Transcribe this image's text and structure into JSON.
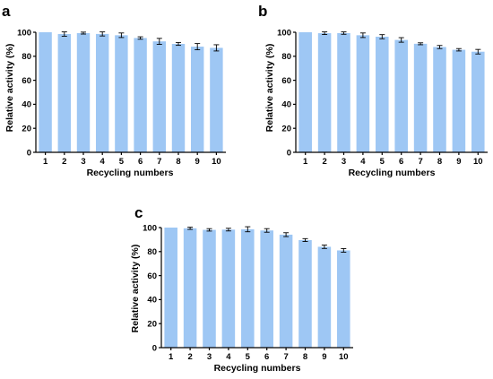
{
  "style": {
    "bar_color": "#9ec7f4",
    "axis_color": "#000000"
  },
  "chart_data": [
    {
      "panel": "a",
      "type": "bar",
      "categories": [
        "1",
        "2",
        "3",
        "4",
        "5",
        "6",
        "7",
        "8",
        "9",
        "10"
      ],
      "series": [
        {
          "values": [
            100,
            98.5,
            99.3,
            98.6,
            97.5,
            95.2,
            92.4,
            90.3,
            88.0,
            87.0
          ],
          "errors": [
            0,
            1.8,
            0.8,
            1.7,
            1.9,
            1.0,
            2.5,
            1.2,
            2.6,
            2.6
          ]
        }
      ],
      "ylim": [
        0,
        100
      ],
      "yticks": [
        0,
        20,
        40,
        60,
        80,
        100
      ],
      "xlabel": "Recycling numbers",
      "ylabel": "Relative activity (%)"
    },
    {
      "panel": "b",
      "type": "bar",
      "categories": [
        "1",
        "2",
        "3",
        "4",
        "5",
        "6",
        "7",
        "8",
        "9",
        "10"
      ],
      "series": [
        {
          "values": [
            100,
            99.2,
            99.3,
            97.5,
            96.3,
            93.6,
            90.4,
            87.7,
            85.4,
            83.8
          ],
          "errors": [
            0,
            1.1,
            1.0,
            1.9,
            1.7,
            1.9,
            0.8,
            1.3,
            1.0,
            1.9
          ]
        }
      ],
      "ylim": [
        0,
        100
      ],
      "yticks": [
        0,
        20,
        40,
        60,
        80,
        100
      ],
      "xlabel": "Recycling numbers",
      "ylabel": "Relative activity (%)"
    },
    {
      "panel": "c",
      "type": "bar",
      "categories": [
        "1",
        "2",
        "3",
        "4",
        "5",
        "6",
        "7",
        "8",
        "9",
        "10"
      ],
      "series": [
        {
          "values": [
            100,
            99.4,
            98.1,
            98.3,
            98.6,
            97.6,
            94.1,
            89.6,
            84.0,
            81.0
          ],
          "errors": [
            0,
            0.9,
            1.0,
            1.1,
            2.1,
            1.5,
            1.6,
            1.2,
            1.4,
            1.5
          ]
        }
      ],
      "ylim": [
        0,
        100
      ],
      "yticks": [
        0,
        20,
        40,
        60,
        80,
        100
      ],
      "xlabel": "Recycling numbers",
      "ylabel": "Relative activity (%)"
    }
  ]
}
